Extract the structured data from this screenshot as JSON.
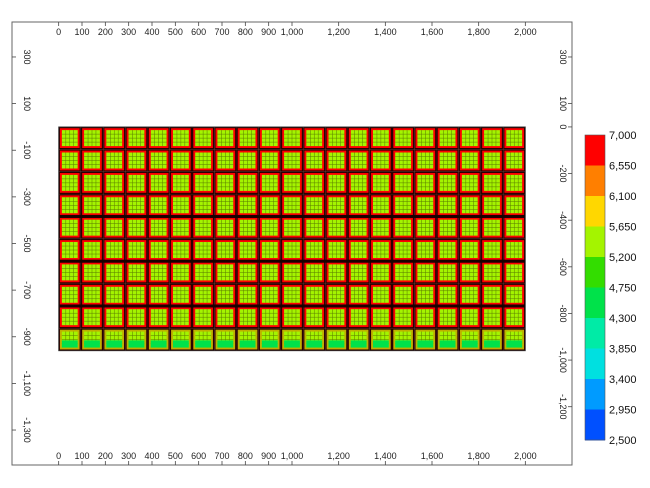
{
  "chart_data": {
    "type": "heatmap",
    "title": "",
    "xlabel": "",
    "ylabel": "",
    "grid": false,
    "legend_placement": "right",
    "xlim": [
      -200,
      2200
    ],
    "ylim": [
      -1450,
      450
    ],
    "data_extent": {
      "x": [
        0,
        2000
      ],
      "y": [
        -960,
        0
      ]
    },
    "x_ticks": [
      {
        "v": 0,
        "label": "0"
      },
      {
        "v": 100,
        "label": "100"
      },
      {
        "v": 200,
        "label": "200"
      },
      {
        "v": 300,
        "label": "300"
      },
      {
        "v": 400,
        "label": "400"
      },
      {
        "v": 500,
        "label": "500"
      },
      {
        "v": 600,
        "label": "600"
      },
      {
        "v": 700,
        "label": "700"
      },
      {
        "v": 800,
        "label": "800"
      },
      {
        "v": 900,
        "label": "900"
      },
      {
        "v": 1000,
        "label": "1,000"
      },
      {
        "v": 1200,
        "label": "1,200"
      },
      {
        "v": 1400,
        "label": "1,400"
      },
      {
        "v": 1600,
        "label": "1,600"
      },
      {
        "v": 1800,
        "label": "1,800"
      },
      {
        "v": 2000,
        "label": "2,000"
      }
    ],
    "y_ticks_left": [
      {
        "v": 300,
        "label": "300"
      },
      {
        "v": 100,
        "label": "100"
      },
      {
        "v": -100,
        "label": "-100"
      },
      {
        "v": -300,
        "label": "-300"
      },
      {
        "v": -500,
        "label": "-500"
      },
      {
        "v": -700,
        "label": "-700"
      },
      {
        "v": -900,
        "label": "-900"
      },
      {
        "v": -1100,
        "label": "-1,100"
      },
      {
        "v": -1300,
        "label": "-1,300"
      }
    ],
    "y_ticks_right": [
      {
        "v": 300,
        "label": "300"
      },
      {
        "v": 100,
        "label": "100"
      },
      {
        "v": 0,
        "label": "0"
      },
      {
        "v": -200,
        "label": "-200"
      },
      {
        "v": -400,
        "label": "-400"
      },
      {
        "v": -600,
        "label": "-600"
      },
      {
        "v": -800,
        "label": "-800"
      },
      {
        "v": -1000,
        "label": "-1,000"
      },
      {
        "v": -1200,
        "label": "-1,200"
      }
    ],
    "grid_pattern": {
      "columns": 21,
      "rows": 10,
      "cell_size": 95.2,
      "core_value": 5650,
      "edge_value": 7000,
      "seam_value": 2500,
      "bottom_row_value": 4750
    },
    "colorbar": {
      "min": 2500,
      "max": 7000,
      "levels": [
        "7,000",
        "6,550",
        "6,100",
        "5,650",
        "5,200",
        "4,750",
        "4,300",
        "3,850",
        "3,400",
        "2,950",
        "2,500"
      ],
      "colors": [
        "#ff0000",
        "#ff7f00",
        "#ffd700",
        "#a4f400",
        "#33dd00",
        "#00e24a",
        "#00eba6",
        "#00e0e0",
        "#009bff",
        "#0050ff",
        "#0000ff"
      ]
    }
  }
}
